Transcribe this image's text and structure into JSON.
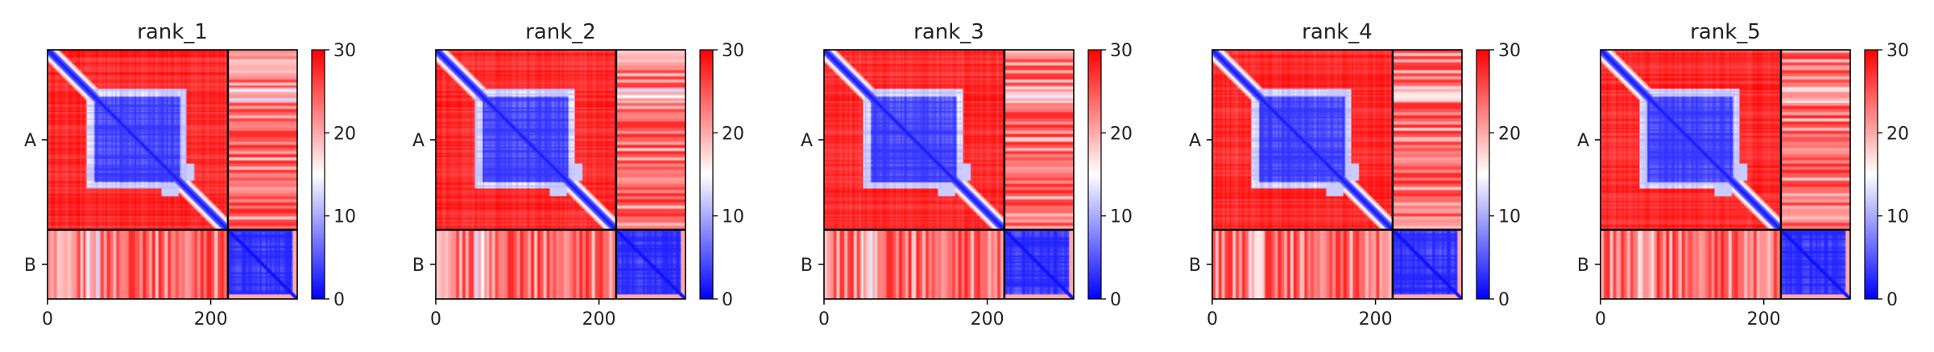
{
  "chart_data": {
    "type": "heatmap",
    "layout": "1 row x 5 panels",
    "colormap": [
      "#0000ff",
      "#ffffff",
      "#ff0000"
    ],
    "colorbar": {
      "min": 0,
      "max": 30,
      "ticks": [
        0,
        10,
        20,
        30
      ]
    },
    "chains": [
      {
        "name": "A",
        "start": 0,
        "end": 221
      },
      {
        "name": "B",
        "start": 221,
        "end": 306
      }
    ],
    "x_ticks": [
      0,
      200
    ],
    "xlim": [
      0,
      306
    ],
    "panels": [
      {
        "title": "rank_1"
      },
      {
        "title": "rank_2"
      },
      {
        "title": "rank_3"
      },
      {
        "title": "rank_4"
      },
      {
        "title": "rank_5"
      }
    ]
  }
}
